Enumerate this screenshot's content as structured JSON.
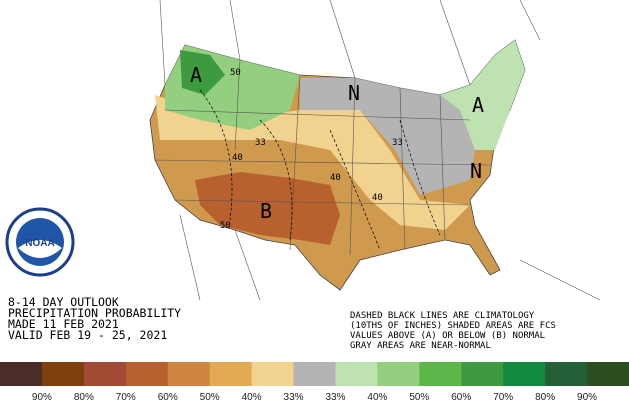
{
  "header": {
    "lines": [
      "8-14 DAY OUTLOOK",
      "PRECIPITATION PROBABILITY",
      "MADE 11 FEB 2021",
      "VALID FEB 19 - 25, 2021"
    ]
  },
  "note": {
    "lines": [
      "DASHED BLACK LINES ARE CLIMATOLOGY",
      "(10THS OF INCHES) SHADED AREAS ARE FCS",
      "VALUES ABOVE (A) OR BELOW (B) NORMAL",
      "GRAY AREAS ARE NEAR-NORMAL"
    ]
  },
  "logo": "NOAA",
  "map_labels": {
    "region": [
      "A",
      "A",
      "N",
      "N",
      "B"
    ],
    "contours": [
      "50",
      "33",
      "40",
      "33",
      "40",
      "50",
      "40"
    ]
  },
  "legend": {
    "colors": [
      "#4a2c28",
      "#7f3f0c",
      "#a34a35",
      "#b8612f",
      "#cf8540",
      "#e2aa52",
      "#f1d28f",
      "#b4b4b4",
      "#bfe3b0",
      "#93cf7e",
      "#5cb649",
      "#3d9a3f",
      "#138a3f",
      "#255f37",
      "#2b4d1f"
    ],
    "labels": [
      "90%",
      "80%",
      "70%",
      "60%",
      "50%",
      "40%",
      "33%",
      "33%",
      "40%",
      "50%",
      "60%",
      "70%",
      "80%",
      "90%"
    ]
  }
}
